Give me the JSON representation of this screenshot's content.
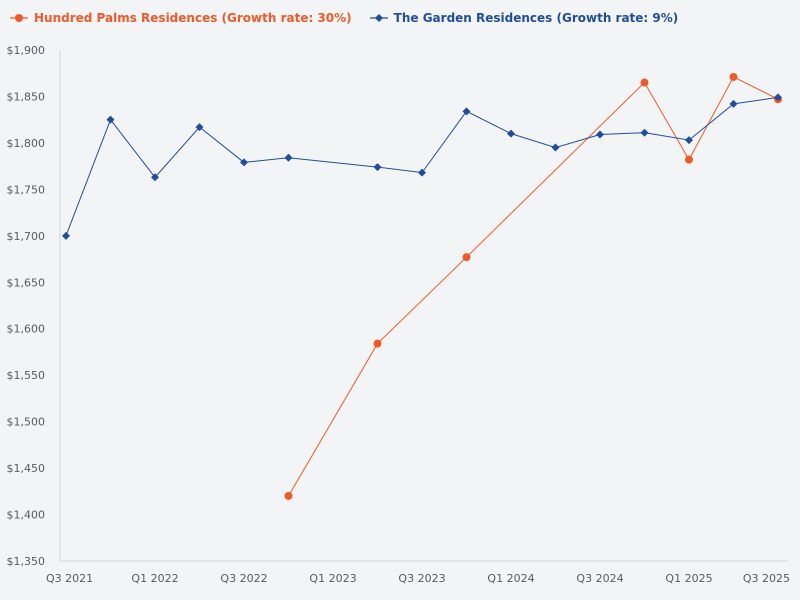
{
  "chart_data": {
    "type": "line",
    "title": "",
    "xlabel": "",
    "ylabel": "",
    "ylim": [
      1350,
      1900
    ],
    "y_ticks": [
      1350,
      1400,
      1450,
      1500,
      1550,
      1600,
      1650,
      1700,
      1750,
      1800,
      1850,
      1900
    ],
    "y_tick_labels": [
      "$1,350",
      "$1,400",
      "$1,450",
      "$1,500",
      "$1,550",
      "$1,600",
      "$1,650",
      "$1,700",
      "$1,750",
      "$1,800",
      "$1,850",
      "$1,900"
    ],
    "x_range": [
      0,
      16
    ],
    "x_ticks": [
      {
        "label": "Q3 2021",
        "x": 0
      },
      {
        "label": "Q1 2022",
        "x": 2
      },
      {
        "label": "Q3 2022",
        "x": 4
      },
      {
        "label": "Q1 2023",
        "x": 6
      },
      {
        "label": "Q3 2023",
        "x": 8
      },
      {
        "label": "Q1 2024",
        "x": 10
      },
      {
        "label": "Q3 2024",
        "x": 12
      },
      {
        "label": "Q1 2025",
        "x": 14
      },
      {
        "label": "Q3 2025",
        "x": 16
      }
    ],
    "grid": false,
    "legend_position": "top-left",
    "series": [
      {
        "name": "Hundred Palms Residences (Growth rate: 30%)",
        "color": "#f05a28",
        "marker": "circle",
        "points": [
          {
            "x": 5,
            "y": 1420
          },
          {
            "x": 7,
            "y": 1584
          },
          {
            "x": 9,
            "y": 1677
          },
          {
            "x": 13,
            "y": 1865
          },
          {
            "x": 14,
            "y": 1782
          },
          {
            "x": 15,
            "y": 1871
          },
          {
            "x": 16,
            "y": 1847
          }
        ]
      },
      {
        "name": "The Garden Residences (Growth rate: 9%)",
        "color": "#1f4e9c",
        "marker": "diamond",
        "points": [
          {
            "x": 0,
            "y": 1700
          },
          {
            "x": 1,
            "y": 1825
          },
          {
            "x": 2,
            "y": 1763
          },
          {
            "x": 3,
            "y": 1817
          },
          {
            "x": 4,
            "y": 1779
          },
          {
            "x": 5,
            "y": 1784
          },
          {
            "x": 7,
            "y": 1774
          },
          {
            "x": 8,
            "y": 1768
          },
          {
            "x": 9,
            "y": 1834
          },
          {
            "x": 10,
            "y": 1810
          },
          {
            "x": 11,
            "y": 1795
          },
          {
            "x": 12,
            "y": 1809
          },
          {
            "x": 13,
            "y": 1811
          },
          {
            "x": 14,
            "y": 1803
          },
          {
            "x": 15,
            "y": 1842
          },
          {
            "x": 16,
            "y": 1849
          }
        ]
      }
    ]
  }
}
